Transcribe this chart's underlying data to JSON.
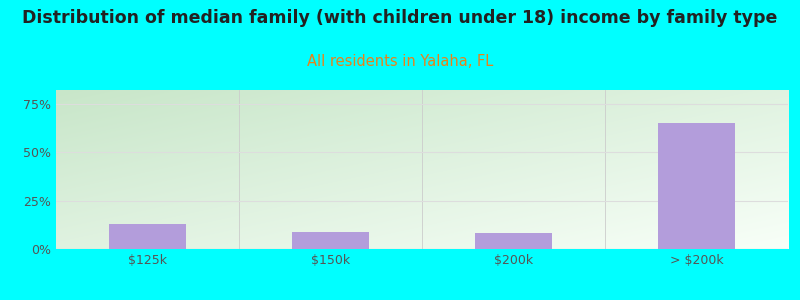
{
  "title": "Distribution of median family (with children under 18) income by family type",
  "subtitle": "All residents in Yalaha, FL",
  "categories": [
    "$125k",
    "$150k",
    "$200k",
    "> $200k"
  ],
  "values": [
    13.0,
    9.0,
    8.5,
    65.0
  ],
  "bar_color": "#b39ddb",
  "title_fontsize": 12.5,
  "subtitle_fontsize": 10.5,
  "subtitle_color": "#e8821a",
  "title_color": "#222222",
  "background_color": "#00ffff",
  "plot_bg_left_top": "#c8e6c9",
  "plot_bg_right_bottom": "#f5fff5",
  "yticks": [
    0,
    25,
    50,
    75
  ],
  "ylim": [
    0,
    82
  ],
  "tick_fontsize": 9,
  "grid_color": "#dddddd"
}
